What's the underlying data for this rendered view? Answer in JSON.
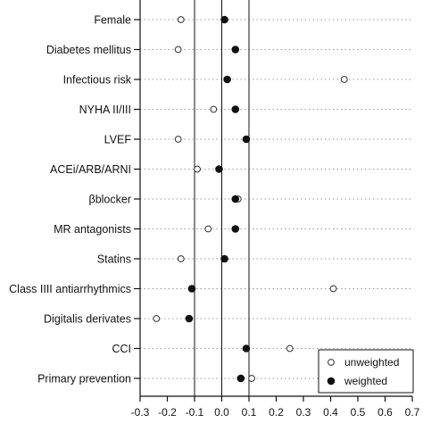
{
  "chart_data": {
    "type": "scatter",
    "orientation": "horizontal",
    "categories": [
      "Female",
      "Diabetes mellitus",
      "Infectious risk",
      "NYHA II/III",
      "LVEF",
      "ACEi/ARB/ARNI",
      "βblocker",
      "MR antagonists",
      "Statins",
      "Class IIII antiarrhythmics",
      "Digitalis derivates",
      "CCI",
      "Primary prevention"
    ],
    "series": [
      {
        "name": "unweighted",
        "marker": "open-circle",
        "values": [
          -0.15,
          -0.16,
          0.45,
          -0.03,
          -0.16,
          -0.09,
          0.06,
          -0.05,
          -0.15,
          0.41,
          -0.24,
          0.25,
          0.11
        ]
      },
      {
        "name": "weighted",
        "marker": "filled-circle",
        "values": [
          0.01,
          0.05,
          0.02,
          0.05,
          0.09,
          -0.01,
          0.05,
          0.05,
          0.01,
          -0.11,
          -0.12,
          0.09,
          0.07
        ]
      }
    ],
    "xlim": [
      -0.3,
      0.7
    ],
    "xticks": [
      "-0.3",
      "-0.2",
      "-0.1",
      "0.0",
      "0.1",
      "0.2",
      "0.3",
      "0.4",
      "0.5",
      "0.6",
      "0.7"
    ],
    "reference_lines": [
      -0.1,
      0.0,
      0.1
    ],
    "grid": "dotted horizontal",
    "legend_position": "bottom-right",
    "colors": {
      "marker": "#111111",
      "grid": "#9a9a9a",
      "axis": "#111111"
    }
  }
}
